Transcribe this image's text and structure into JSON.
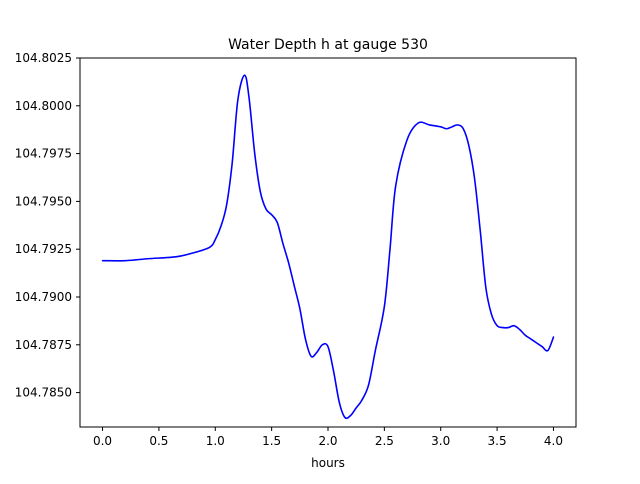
{
  "chart_data": {
    "type": "line",
    "title": "Water Depth h at gauge 530",
    "xlabel": "hours",
    "ylabel": "",
    "xlim": [
      -0.2,
      4.2
    ],
    "ylim": [
      104.7832,
      104.8025
    ],
    "xticks": [
      0.0,
      0.5,
      1.0,
      1.5,
      2.0,
      2.5,
      3.0,
      3.5,
      4.0
    ],
    "xtick_labels": [
      "0.0",
      "0.5",
      "1.0",
      "1.5",
      "2.0",
      "2.5",
      "3.0",
      "3.5",
      "4.0"
    ],
    "yticks": [
      104.785,
      104.7875,
      104.79,
      104.7925,
      104.795,
      104.7975,
      104.8,
      104.8025
    ],
    "ytick_labels": [
      "104.7850",
      "104.7875",
      "104.7900",
      "104.7925",
      "104.7950",
      "104.7975",
      "104.8000",
      "104.8025"
    ],
    "grid": false,
    "series": [
      {
        "color": "#0000ff",
        "x": [
          0.0,
          0.2,
          0.4,
          0.65,
          0.8,
          0.95,
          1.0,
          1.05,
          1.1,
          1.15,
          1.2,
          1.26,
          1.3,
          1.35,
          1.4,
          1.45,
          1.5,
          1.55,
          1.6,
          1.65,
          1.7,
          1.75,
          1.8,
          1.85,
          1.9,
          1.95,
          2.0,
          2.05,
          2.1,
          2.15,
          2.2,
          2.25,
          2.3,
          2.36,
          2.42,
          2.5,
          2.55,
          2.6,
          2.7,
          2.8,
          2.9,
          3.0,
          3.05,
          3.1,
          3.15,
          3.2,
          3.25,
          3.3,
          3.35,
          3.4,
          3.45,
          3.5,
          3.55,
          3.6,
          3.65,
          3.7,
          3.75,
          3.8,
          3.85,
          3.9,
          3.95,
          4.0
        ],
        "y": [
          104.7919,
          104.7919,
          104.792,
          104.7921,
          104.7923,
          104.7926,
          104.793,
          104.7937,
          104.7948,
          104.797,
          104.8003,
          104.8016,
          104.8004,
          104.7975,
          104.7955,
          104.7946,
          104.7943,
          104.7939,
          104.7928,
          104.7918,
          104.7906,
          104.7894,
          104.7878,
          104.7869,
          104.7871,
          104.7875,
          104.7874,
          104.7861,
          104.7845,
          104.7837,
          104.7838,
          104.7842,
          104.7846,
          104.7854,
          104.7872,
          104.7895,
          104.7925,
          104.7958,
          104.7982,
          104.7991,
          104.799,
          104.7989,
          104.7988,
          104.7989,
          104.799,
          104.7988,
          104.7979,
          104.7962,
          104.7935,
          104.7905,
          104.7891,
          104.7885,
          104.7884,
          104.7884,
          104.7885,
          104.7883,
          104.788,
          104.7878,
          104.7876,
          104.7874,
          104.7872,
          104.7879
        ]
      }
    ]
  }
}
